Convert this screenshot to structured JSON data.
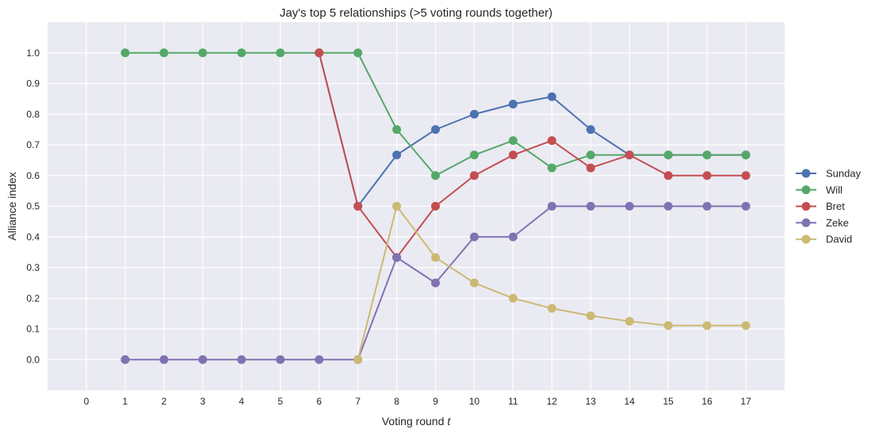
{
  "chart_data": {
    "type": "line",
    "title": "Jay's top 5 relationships (>5 voting rounds together)",
    "xlabel": "Voting round",
    "xlabel_var": "t",
    "ylabel": "Alliance index",
    "xlim": [
      -1,
      18
    ],
    "ylim": [
      -0.1,
      1.1
    ],
    "xticks": [
      0,
      1,
      2,
      3,
      4,
      5,
      6,
      7,
      8,
      9,
      10,
      11,
      12,
      13,
      14,
      15,
      16,
      17
    ],
    "yticks": [
      0.0,
      0.1,
      0.2,
      0.3,
      0.4,
      0.5,
      0.6,
      0.7,
      0.8,
      0.9,
      1.0
    ],
    "ytick_labels": [
      "0.0",
      "0.1",
      "0.2",
      "0.3",
      "0.4",
      "0.5",
      "0.6",
      "0.7",
      "0.8",
      "0.9",
      "1.0"
    ],
    "grid": true,
    "legend_position": "right",
    "series": [
      {
        "name": "Sunday",
        "color": "#4c72b0",
        "x": [
          6,
          7,
          8,
          9,
          10,
          11,
          12,
          13,
          14,
          15,
          16,
          17
        ],
        "values": [
          1.0,
          0.5,
          0.667,
          0.75,
          0.8,
          0.833,
          0.857,
          0.75,
          0.667,
          0.667,
          0.667,
          0.667
        ]
      },
      {
        "name": "Will",
        "color": "#55a868",
        "x": [
          1,
          2,
          3,
          4,
          5,
          6,
          7,
          8,
          9,
          10,
          11,
          12,
          13,
          14,
          15,
          16,
          17
        ],
        "values": [
          1.0,
          1.0,
          1.0,
          1.0,
          1.0,
          1.0,
          1.0,
          0.75,
          0.6,
          0.667,
          0.714,
          0.625,
          0.667,
          0.667,
          0.667,
          0.667,
          0.667
        ]
      },
      {
        "name": "Bret",
        "color": "#c44e52",
        "x": [
          6,
          7,
          8,
          9,
          10,
          11,
          12,
          13,
          14,
          15,
          16,
          17
        ],
        "values": [
          1.0,
          0.5,
          0.333,
          0.5,
          0.6,
          0.667,
          0.714,
          0.625,
          0.667,
          0.6,
          0.6,
          0.6
        ]
      },
      {
        "name": "Zeke",
        "color": "#8172b2",
        "x": [
          1,
          2,
          3,
          4,
          5,
          6,
          7,
          8,
          9,
          10,
          11,
          12,
          13,
          14,
          15,
          16,
          17
        ],
        "values": [
          0.0,
          0.0,
          0.0,
          0.0,
          0.0,
          0.0,
          0.0,
          0.333,
          0.25,
          0.4,
          0.4,
          0.5,
          0.5,
          0.5,
          0.5,
          0.5,
          0.5
        ]
      },
      {
        "name": "David",
        "color": "#ccb974",
        "x": [
          7,
          8,
          9,
          10,
          11,
          12,
          13,
          14,
          15,
          16,
          17
        ],
        "values": [
          0.0,
          0.5,
          0.333,
          0.25,
          0.2,
          0.167,
          0.143,
          0.125,
          0.111,
          0.111,
          0.111
        ]
      }
    ]
  }
}
